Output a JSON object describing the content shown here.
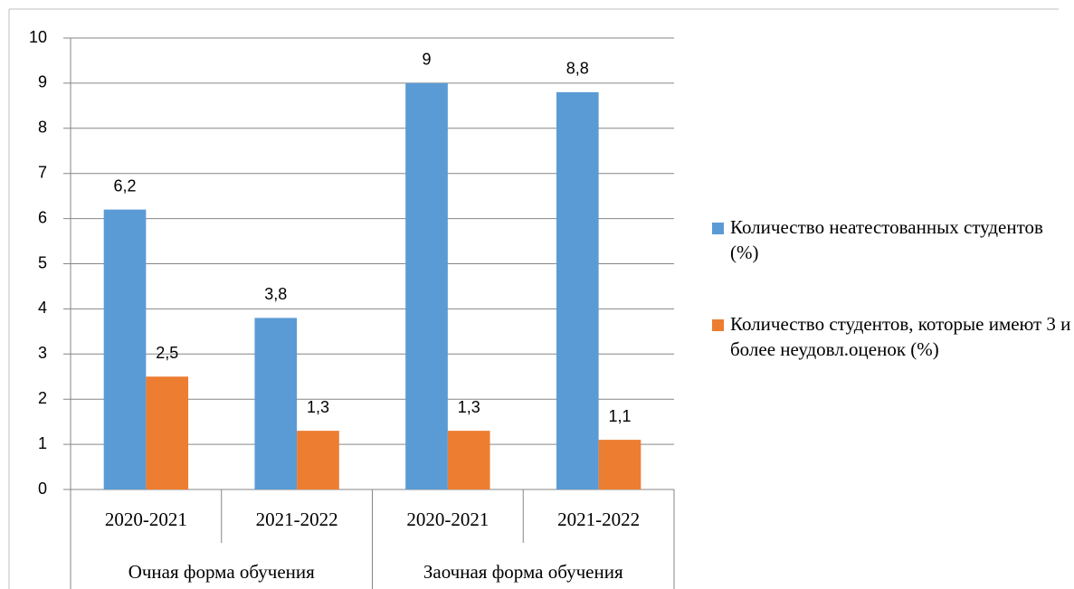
{
  "chart_data": {
    "type": "bar",
    "category_groups": [
      {
        "name": "Очная форма обучения",
        "categories": [
          "2020-2021",
          "2021-2022"
        ]
      },
      {
        "name": "Заочная форма обучения",
        "categories": [
          "2020-2021",
          "2021-2022"
        ]
      }
    ],
    "series": [
      {
        "name": "Количество неатестованных студентов (%)",
        "color": "#5b9bd5",
        "values": [
          6.2,
          3.8,
          9,
          8.8
        ],
        "value_labels": [
          "6,2",
          "3,8",
          "9",
          "8,8"
        ]
      },
      {
        "name": "Количество студентов, которые имеют 3 и более неудовл.оценок (%)",
        "color": "#ed7d31",
        "values": [
          2.5,
          1.3,
          1.3,
          1.1
        ],
        "value_labels": [
          "2,5",
          "1,3",
          "1,3",
          "1,1"
        ]
      }
    ],
    "ylim": [
      0,
      10
    ],
    "yticks": [
      0,
      1,
      2,
      3,
      4,
      5,
      6,
      7,
      8,
      9,
      10
    ],
    "grid": true,
    "legend": "right"
  }
}
